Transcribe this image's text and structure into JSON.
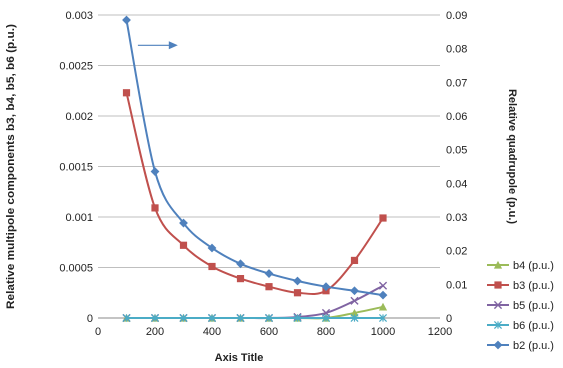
{
  "chart_data": {
    "type": "line",
    "title": "",
    "xlabel": "Axis Title",
    "ylabel_left": "Relative multipole components b3, b4, b5, b6 (p.u.)",
    "ylabel_right": "Relative quadrupole (p.u.)",
    "xlim": [
      0,
      1200
    ],
    "xticks": [
      0,
      200,
      400,
      600,
      800,
      1000,
      1200
    ],
    "ylim_left": [
      0,
      0.003
    ],
    "yticks_left": [
      "0",
      "0.0005",
      "0.001",
      "0.0015",
      "0.002",
      "0.0025",
      "0.003"
    ],
    "yticks_left_values": [
      0,
      0.0005,
      0.001,
      0.0015,
      0.002,
      0.0025,
      0.003
    ],
    "ylim_right": [
      0,
      0.09
    ],
    "yticks_right": [
      "0",
      "0.01",
      "0.02",
      "0.03",
      "0.04",
      "0.05",
      "0.06",
      "0.07",
      "0.08",
      "0.09"
    ],
    "yticks_right_values": [
      0,
      0.01,
      0.02,
      0.03,
      0.04,
      0.05,
      0.06,
      0.07,
      0.08,
      0.09
    ],
    "grid": "horizontal",
    "legend_position": "right",
    "x": [
      100,
      200,
      300,
      400,
      500,
      600,
      700,
      800,
      900,
      1000
    ],
    "series": [
      {
        "name": "b4 (p.u.)",
        "axis": "left",
        "color": "#9BBB59",
        "marker": "triangle",
        "values": [
          0,
          0,
          0,
          0,
          0,
          0,
          0,
          0,
          5e-05,
          0.00011
        ]
      },
      {
        "name": "b3 (p.u.)",
        "axis": "left",
        "color": "#C0504D",
        "marker": "square",
        "values": [
          0.00223,
          0.00109,
          0.00072,
          0.00051,
          0.00039,
          0.00031,
          0.00025,
          0.00027,
          0.00057,
          0.00099
        ]
      },
      {
        "name": "b5 (p.u.)",
        "axis": "left",
        "color": "#8064A2",
        "marker": "x",
        "values": [
          0,
          0,
          0,
          0,
          0,
          0,
          1e-05,
          5e-05,
          0.00017,
          0.00032
        ]
      },
      {
        "name": "b6 (p.u.)",
        "axis": "left",
        "color": "#4BACC6",
        "marker": "star",
        "values": [
          0,
          0,
          0,
          0,
          0,
          0,
          0,
          0,
          0,
          0
        ]
      },
      {
        "name": "b2 (p.u.)",
        "axis": "right",
        "color": "#4F81BD",
        "marker": "diamond",
        "values": [
          0.0885,
          0.0435,
          0.0282,
          0.0208,
          0.0161,
          0.0132,
          0.011,
          0.0093,
          0.0081,
          0.0068
        ]
      }
    ],
    "annotation": {
      "type": "arrow",
      "color": "#4F81BD",
      "from_x": 140,
      "to_x": 280,
      "y_right": 0.081
    }
  }
}
